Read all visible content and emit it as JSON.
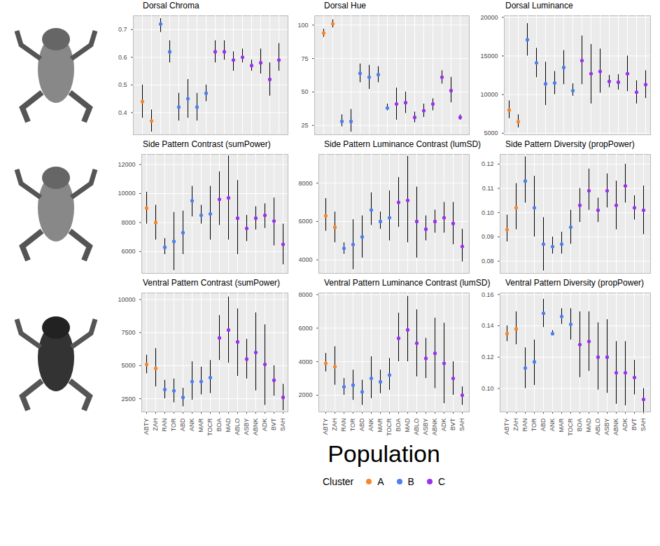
{
  "chart_data": [
    {
      "type": "scatter",
      "title": "Dorsal Chroma",
      "tick_labels": "y",
      "grid": true,
      "categories": [
        "ABTY",
        "ZAH",
        "RAN",
        "TOR",
        "ABD",
        "ANK",
        "MAR",
        "TOCR",
        "BOA",
        "MAD",
        "ABLO",
        "ASBY",
        "ABNK",
        "ADK",
        "BVT",
        "SAH"
      ],
      "values": [
        0.44,
        0.37,
        0.72,
        0.62,
        0.42,
        0.45,
        0.42,
        0.47,
        0.62,
        0.62,
        0.59,
        0.6,
        0.57,
        0.58,
        0.52,
        0.59
      ],
      "error_low": [
        0.38,
        0.33,
        0.69,
        0.58,
        0.37,
        0.38,
        0.37,
        0.44,
        0.58,
        0.59,
        0.55,
        0.58,
        0.55,
        0.54,
        0.46,
        0.55
      ],
      "error_high": [
        0.5,
        0.41,
        0.74,
        0.66,
        0.47,
        0.52,
        0.47,
        0.5,
        0.66,
        0.66,
        0.62,
        0.63,
        0.59,
        0.63,
        0.58,
        0.65
      ],
      "colors": [
        "#f8862a",
        "#f8862a",
        "#4e7ff0",
        "#4e7ff0",
        "#4e7ff0",
        "#4e7ff0",
        "#4e7ff0",
        "#4e7ff0",
        "#9b30f0",
        "#9b30f0",
        "#9b30f0",
        "#9b30f0",
        "#9b30f0",
        "#9b30f0",
        "#9b30f0",
        "#9b30f0"
      ],
      "ylim": [
        0.32,
        0.75
      ],
      "yticks": [
        0.4,
        0.5,
        0.6,
        0.7
      ]
    },
    {
      "type": "scatter",
      "title": "Dorsal Hue",
      "tick_labels": "y",
      "grid": true,
      "categories": [
        "ABTY",
        "ZAH",
        "RAN",
        "TOR",
        "ABD",
        "ANK",
        "MAR",
        "TOCR",
        "BOA",
        "MAD",
        "ABLO",
        "ASBY",
        "ABNK",
        "ADK",
        "BVT",
        "SAH"
      ],
      "values": [
        94,
        101,
        28,
        28,
        64,
        61,
        63,
        38,
        41,
        42,
        31,
        36,
        41,
        61,
        51,
        31
      ],
      "error_low": [
        91,
        98,
        24,
        20,
        57,
        52,
        57,
        36,
        29,
        34,
        27,
        31,
        36,
        56,
        42,
        29
      ],
      "error_high": [
        97,
        104,
        33,
        37,
        71,
        70,
        69,
        41,
        53,
        50,
        35,
        41,
        45,
        66,
        61,
        33
      ],
      "colors": [
        "#f8862a",
        "#f8862a",
        "#4e7ff0",
        "#4e7ff0",
        "#4e7ff0",
        "#4e7ff0",
        "#4e7ff0",
        "#4e7ff0",
        "#9b30f0",
        "#9b30f0",
        "#9b30f0",
        "#9b30f0",
        "#9b30f0",
        "#9b30f0",
        "#9b30f0",
        "#9b30f0"
      ],
      "ylim": [
        18,
        107
      ],
      "yticks": [
        25,
        50,
        75,
        100
      ]
    },
    {
      "type": "scatter",
      "title": "Dorsal Luminance",
      "tick_labels": "y",
      "grid": true,
      "categories": [
        "ABTY",
        "ZAH",
        "RAN",
        "TOR",
        "ABD",
        "ANK",
        "MAR",
        "TOCR",
        "BOA",
        "MAD",
        "ABLO",
        "ASBY",
        "ABNK",
        "ADK",
        "BVT",
        "SAH"
      ],
      "values": [
        8000,
        6500,
        17100,
        14100,
        11400,
        11500,
        13500,
        10500,
        14400,
        12700,
        13000,
        11700,
        11600,
        12700,
        10300,
        11300
      ],
      "error_low": [
        6900,
        5700,
        15000,
        12200,
        8600,
        10000,
        11300,
        9800,
        11300,
        8800,
        10200,
        10900,
        10600,
        10400,
        8800,
        9500
      ],
      "error_high": [
        9200,
        7400,
        19200,
        16000,
        14200,
        13000,
        15700,
        11400,
        17600,
        16500,
        15900,
        12500,
        12600,
        15000,
        11800,
        13100
      ],
      "colors": [
        "#f8862a",
        "#f8862a",
        "#4e7ff0",
        "#4e7ff0",
        "#4e7ff0",
        "#4e7ff0",
        "#4e7ff0",
        "#4e7ff0",
        "#9b30f0",
        "#9b30f0",
        "#9b30f0",
        "#9b30f0",
        "#9b30f0",
        "#9b30f0",
        "#9b30f0",
        "#9b30f0"
      ],
      "ylim": [
        4800,
        20200
      ],
      "yticks": [
        5000,
        10000,
        15000,
        20000
      ]
    },
    {
      "type": "scatter",
      "title": "Side Pattern Contrast (sumPower)",
      "tick_labels": "y",
      "grid": true,
      "categories": [
        "ABTY",
        "ZAH",
        "RAN",
        "TOR",
        "ABD",
        "ANK",
        "MAR",
        "TOCR",
        "BOA",
        "MAD",
        "ABLO",
        "ASBY",
        "ABNK",
        "ADK",
        "BVT",
        "SAH"
      ],
      "values": [
        9000,
        8000,
        6300,
        6700,
        7300,
        9500,
        8500,
        8600,
        9600,
        9700,
        8300,
        7600,
        8300,
        8500,
        8100,
        6500
      ],
      "error_low": [
        7900,
        6800,
        5800,
        4700,
        5800,
        8400,
        7900,
        6800,
        7800,
        6800,
        5800,
        6700,
        7500,
        7600,
        6400,
        5100
      ],
      "error_high": [
        10100,
        9200,
        6900,
        8700,
        8800,
        10500,
        9200,
        10500,
        11500,
        12600,
        10900,
        8500,
        9100,
        9300,
        9700,
        7900
      ],
      "colors": [
        "#f8862a",
        "#f8862a",
        "#4e7ff0",
        "#4e7ff0",
        "#4e7ff0",
        "#4e7ff0",
        "#4e7ff0",
        "#4e7ff0",
        "#9b30f0",
        "#9b30f0",
        "#9b30f0",
        "#9b30f0",
        "#9b30f0",
        "#9b30f0",
        "#9b30f0",
        "#9b30f0"
      ],
      "ylim": [
        4500,
        12700
      ],
      "yticks": [
        6000,
        8000,
        10000,
        12000
      ]
    },
    {
      "type": "scatter",
      "title": "Side Pattern Luminance Contrast (lumSD)",
      "tick_labels": "y",
      "grid": true,
      "categories": [
        "ABTY",
        "ZAH",
        "RAN",
        "TOR",
        "ABD",
        "ANK",
        "MAR",
        "TOCR",
        "BOA",
        "MAD",
        "ABLO",
        "ASBY",
        "ABNK",
        "ADK",
        "BVT",
        "SAH"
      ],
      "values": [
        6300,
        5700,
        4600,
        4800,
        5200,
        6600,
        6000,
        6200,
        7000,
        7100,
        6000,
        5600,
        6000,
        6200,
        5900,
        4700
      ],
      "error_low": [
        5500,
        4900,
        4300,
        3500,
        4100,
        5800,
        5600,
        5000,
        5700,
        4900,
        4100,
        5000,
        5400,
        5400,
        4800,
        3900
      ],
      "error_high": [
        7200,
        6500,
        4900,
        6100,
        6300,
        7500,
        6500,
        7600,
        8300,
        9400,
        7800,
        6300,
        6600,
        7000,
        7000,
        5600
      ],
      "colors": [
        "#f8862a",
        "#f8862a",
        "#4e7ff0",
        "#4e7ff0",
        "#4e7ff0",
        "#4e7ff0",
        "#4e7ff0",
        "#4e7ff0",
        "#9b30f0",
        "#9b30f0",
        "#9b30f0",
        "#9b30f0",
        "#9b30f0",
        "#9b30f0",
        "#9b30f0",
        "#9b30f0"
      ],
      "ylim": [
        3300,
        9500
      ],
      "yticks": [
        4000,
        6000,
        8000
      ]
    },
    {
      "type": "scatter",
      "title": "Side Pattern Diversity (propPower)",
      "tick_labels": "y",
      "grid": true,
      "categories": [
        "ABTY",
        "ZAH",
        "RAN",
        "TOR",
        "ABD",
        "ANK",
        "MAR",
        "TOCR",
        "BOA",
        "MAD",
        "ABLO",
        "ASBY",
        "ABNK",
        "ADK",
        "BVT",
        "SAH"
      ],
      "values": [
        0.093,
        0.102,
        0.113,
        0.102,
        0.087,
        0.086,
        0.087,
        0.094,
        0.103,
        0.109,
        0.101,
        0.109,
        0.103,
        0.111,
        0.102,
        0.101
      ],
      "error_low": [
        0.088,
        0.093,
        0.104,
        0.09,
        0.076,
        0.083,
        0.083,
        0.087,
        0.096,
        0.101,
        0.096,
        0.102,
        0.093,
        0.104,
        0.097,
        0.091
      ],
      "error_high": [
        0.099,
        0.112,
        0.123,
        0.115,
        0.098,
        0.09,
        0.092,
        0.101,
        0.11,
        0.118,
        0.106,
        0.116,
        0.113,
        0.12,
        0.107,
        0.111
      ],
      "colors": [
        "#f8862a",
        "#f8862a",
        "#4e7ff0",
        "#4e7ff0",
        "#4e7ff0",
        "#4e7ff0",
        "#4e7ff0",
        "#4e7ff0",
        "#9b30f0",
        "#9b30f0",
        "#9b30f0",
        "#9b30f0",
        "#9b30f0",
        "#9b30f0",
        "#9b30f0",
        "#9b30f0"
      ],
      "ylim": [
        0.075,
        0.124
      ],
      "yticks": [
        0.08,
        0.09,
        {
          "value": 0.1,
          "label": "0.10"
        },
        0.11,
        0.12
      ]
    },
    {
      "type": "scatter",
      "title": "Ventral Pattern Contrast (sumPower)",
      "grid": true,
      "categories": [
        "ABTY",
        "ZAH",
        "RAN",
        "TOR",
        "ABD",
        "ANK",
        "MAR",
        "TOCR",
        "BOA",
        "MAD",
        "ABLO",
        "ASBY",
        "ABNK",
        "ADK",
        "BVT",
        "SAH"
      ],
      "values": [
        5100,
        4800,
        3200,
        3100,
        2600,
        3800,
        3800,
        4100,
        7100,
        7700,
        6800,
        5500,
        6000,
        5100,
        3900,
        2600
      ],
      "error_low": [
        4400,
        3400,
        2500,
        2200,
        1900,
        2400,
        2800,
        2900,
        5400,
        5200,
        4200,
        4000,
        3100,
        2000,
        2700,
        1600
      ],
      "error_high": [
        5800,
        6300,
        3900,
        4000,
        3300,
        5300,
        4900,
        5400,
        8800,
        10200,
        9300,
        7000,
        9000,
        8100,
        5000,
        3600
      ],
      "colors": [
        "#f8862a",
        "#f8862a",
        "#4e7ff0",
        "#4e7ff0",
        "#4e7ff0",
        "#4e7ff0",
        "#4e7ff0",
        "#4e7ff0",
        "#9b30f0",
        "#9b30f0",
        "#9b30f0",
        "#9b30f0",
        "#9b30f0",
        "#9b30f0",
        "#9b30f0",
        "#9b30f0"
      ],
      "ylim": [
        1500,
        10500
      ],
      "yticks": [
        2500,
        5000,
        7500,
        10000
      ]
    },
    {
      "type": "scatter",
      "title": "Ventral Pattern Luminance Contrast (lumSD)",
      "grid": true,
      "categories": [
        "ABTY",
        "ZAH",
        "RAN",
        "TOR",
        "ABD",
        "ANK",
        "MAR",
        "TOCR",
        "BOA",
        "MAD",
        "ABLO",
        "ASBY",
        "ABNK",
        "ADK",
        "BVT",
        "SAH"
      ],
      "values": [
        3900,
        3700,
        2500,
        2600,
        2200,
        3000,
        2800,
        3200,
        5400,
        5900,
        5100,
        4200,
        4500,
        3900,
        3000,
        2000
      ],
      "error_low": [
        3400,
        2600,
        2000,
        1700,
        1400,
        1800,
        2100,
        2300,
        4000,
        4000,
        3100,
        3000,
        2400,
        1500,
        2000,
        1400
      ],
      "error_high": [
        4500,
        4900,
        3000,
        3500,
        2900,
        4300,
        3500,
        4200,
        6900,
        7900,
        7100,
        5400,
        6600,
        6300,
        4000,
        2500
      ],
      "colors": [
        "#f8862a",
        "#f8862a",
        "#4e7ff0",
        "#4e7ff0",
        "#4e7ff0",
        "#4e7ff0",
        "#4e7ff0",
        "#4e7ff0",
        "#9b30f0",
        "#9b30f0",
        "#9b30f0",
        "#9b30f0",
        "#9b30f0",
        "#9b30f0",
        "#9b30f0",
        "#9b30f0"
      ],
      "ylim": [
        1000,
        8100
      ],
      "yticks": [
        2000,
        4000,
        6000,
        8000
      ]
    },
    {
      "type": "scatter",
      "title": "Ventral Pattern Diversity (propPower)",
      "grid": true,
      "categories": [
        "ABTY",
        "ZAH",
        "RAN",
        "TOR",
        "ABD",
        "ANK",
        "MAR",
        "TOCR",
        "BOA",
        "MAD",
        "ABLO",
        "ASBY",
        "ABNK",
        "ADK",
        "BVT",
        "SAH"
      ],
      "values": [
        0.135,
        0.138,
        0.113,
        0.117,
        0.148,
        0.135,
        0.146,
        0.141,
        0.128,
        0.13,
        0.12,
        0.12,
        0.11,
        0.11,
        0.107,
        0.093
      ],
      "error_low": [
        0.13,
        0.128,
        0.1,
        0.102,
        0.139,
        0.134,
        0.141,
        0.131,
        0.107,
        0.111,
        0.099,
        0.097,
        0.09,
        0.089,
        0.096,
        0.085
      ],
      "error_high": [
        0.14,
        0.149,
        0.126,
        0.131,
        0.157,
        0.137,
        0.151,
        0.151,
        0.149,
        0.149,
        0.142,
        0.144,
        0.13,
        0.13,
        0.118,
        0.1
      ],
      "colors": [
        "#f8862a",
        "#f8862a",
        "#4e7ff0",
        "#4e7ff0",
        "#4e7ff0",
        "#4e7ff0",
        "#4e7ff0",
        "#4e7ff0",
        "#9b30f0",
        "#9b30f0",
        "#9b30f0",
        "#9b30f0",
        "#9b30f0",
        "#9b30f0",
        "#9b30f0",
        "#9b30f0"
      ],
      "ylim": [
        0.085,
        0.161
      ],
      "yticks": [
        {
          "value": 0.1,
          "label": "0.10"
        },
        0.12,
        0.14,
        0.16
      ]
    }
  ],
  "x_label": "Population",
  "legend": {
    "title": "Cluster",
    "position": "bottom",
    "entries": [
      {
        "name": "A",
        "color": "#f8862a"
      },
      {
        "name": "B",
        "color": "#4e7ff0"
      },
      {
        "name": "C",
        "color": "#9b30f0"
      }
    ]
  }
}
